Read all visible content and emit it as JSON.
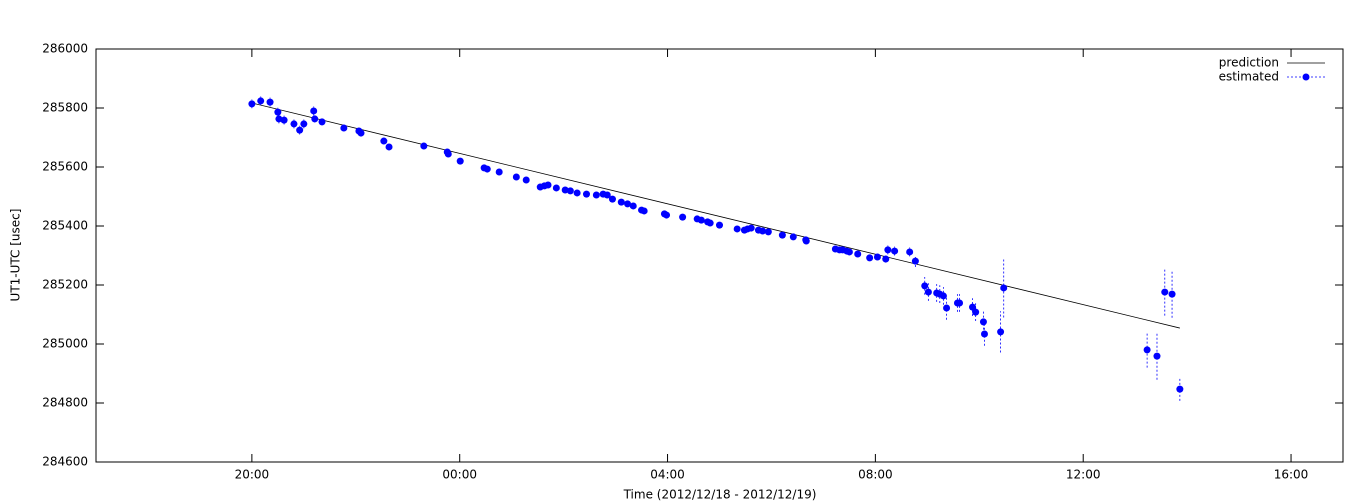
{
  "chart_data": {
    "type": "scatter",
    "x_label": "Time (2012/12/18 - 2012/12/19)",
    "y_label": "UT1-UTC [usec]",
    "xlim": [
      17,
      41
    ],
    "xticks": [
      {
        "value": 20,
        "label": "20:00"
      },
      {
        "value": 24,
        "label": "00:00"
      },
      {
        "value": 28,
        "label": "04:00"
      },
      {
        "value": 32,
        "label": "08:00"
      },
      {
        "value": 36,
        "label": "12:00"
      },
      {
        "value": 40,
        "label": "16:00"
      }
    ],
    "ylim": [
      284600,
      286000
    ],
    "yticks": [
      284600,
      284800,
      285000,
      285200,
      285400,
      285600,
      285800,
      286000
    ],
    "legend": "top-right",
    "series": [
      {
        "name": "prediction",
        "color": "#000000",
        "x": [
          20.0,
          37.86
        ],
        "values": [
          285817,
          285054
        ]
      },
      {
        "name": "estimated",
        "color": "#0000ff",
        "x": [
          20.0,
          20.17,
          20.35,
          20.5,
          20.52,
          20.62,
          20.81,
          20.92,
          21.0,
          21.19,
          21.21,
          21.35,
          21.77,
          22.06,
          22.1,
          22.54,
          22.64,
          23.31,
          23.76,
          23.78,
          24.01,
          24.47,
          24.53,
          24.76,
          25.09,
          25.28,
          25.55,
          25.63,
          25.7,
          25.86,
          26.03,
          26.13,
          26.26,
          26.44,
          26.63,
          26.76,
          26.84,
          26.94,
          27.11,
          27.23,
          27.34,
          27.5,
          27.55,
          27.94,
          27.98,
          28.29,
          28.57,
          28.65,
          28.77,
          28.82,
          29.0,
          29.34,
          29.48,
          29.54,
          29.61,
          29.75,
          29.83,
          29.94,
          30.21,
          30.42,
          30.66,
          30.67,
          31.23,
          31.31,
          31.37,
          31.45,
          31.5,
          31.66,
          31.89,
          32.04,
          32.2,
          32.24,
          32.37,
          32.66,
          32.77,
          32.95,
          33.02,
          33.18,
          33.24,
          33.31,
          33.37,
          33.58,
          33.62,
          33.87,
          33.93,
          34.08,
          34.1,
          34.41,
          34.47,
          37.23,
          37.42,
          37.57,
          37.71,
          37.86
        ],
        "values": [
          285814,
          285824,
          285820,
          285786,
          285763,
          285759,
          285746,
          285725,
          285746,
          285790,
          285763,
          285753,
          285732,
          285722,
          285715,
          285688,
          285668,
          285671,
          285651,
          285644,
          285620,
          285597,
          285593,
          285583,
          285566,
          285556,
          285532,
          285536,
          285539,
          285529,
          285522,
          285519,
          285512,
          285508,
          285505,
          285508,
          285505,
          285491,
          285481,
          285475,
          285468,
          285454,
          285451,
          285441,
          285437,
          285430,
          285424,
          285420,
          285414,
          285410,
          285403,
          285390,
          285386,
          285390,
          285393,
          285386,
          285383,
          285380,
          285369,
          285363,
          285353,
          285349,
          285322,
          285319,
          285319,
          285315,
          285312,
          285305,
          285292,
          285295,
          285288,
          285319,
          285315,
          285312,
          285281,
          285197,
          285176,
          285173,
          285169,
          285163,
          285122,
          285139,
          285139,
          285125,
          285108,
          285075,
          285034,
          285041,
          285190,
          284980,
          284959,
          285176,
          285169,
          284847
        ],
        "errors": [
          15,
          15,
          15,
          15,
          15,
          15,
          15,
          15,
          15,
          15,
          12,
          12,
          10,
          10,
          10,
          10,
          10,
          8,
          8,
          8,
          8,
          8,
          8,
          8,
          8,
          8,
          8,
          8,
          8,
          8,
          8,
          8,
          8,
          8,
          8,
          8,
          8,
          8,
          8,
          8,
          8,
          8,
          8,
          8,
          8,
          8,
          8,
          8,
          8,
          8,
          8,
          8,
          8,
          8,
          8,
          8,
          8,
          8,
          8,
          8,
          8,
          8,
          10,
          10,
          10,
          10,
          10,
          10,
          10,
          10,
          12,
          15,
          15,
          15,
          20,
          30,
          30,
          30,
          30,
          30,
          40,
          30,
          30,
          30,
          30,
          40,
          40,
          70,
          100,
          60,
          80,
          80,
          80,
          40
        ]
      }
    ]
  }
}
